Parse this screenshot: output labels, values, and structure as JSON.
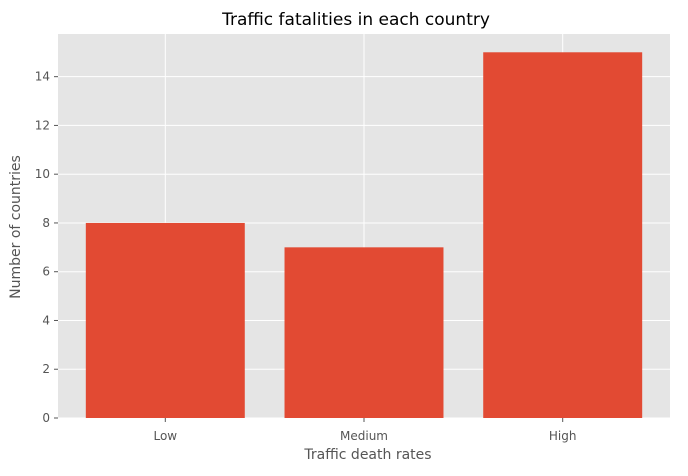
{
  "chart_data": {
    "type": "bar",
    "title": "Traffic fatalities in each country",
    "xlabel": "Traffic death rates",
    "ylabel": "Number of countries",
    "categories": [
      "Low",
      "Medium",
      "High"
    ],
    "values": [
      8,
      7,
      15
    ],
    "ylim": [
      0,
      15.75
    ],
    "yticks": [
      0,
      2,
      4,
      6,
      8,
      10,
      12,
      14
    ],
    "grid": true,
    "legend": "none",
    "colors": {
      "bar": "#E24A33",
      "plot_background": "#E5E5E5",
      "grid": "#FFFFFF",
      "tick_label": "#555555",
      "axis_label": "#555555",
      "title": "#000000"
    }
  }
}
